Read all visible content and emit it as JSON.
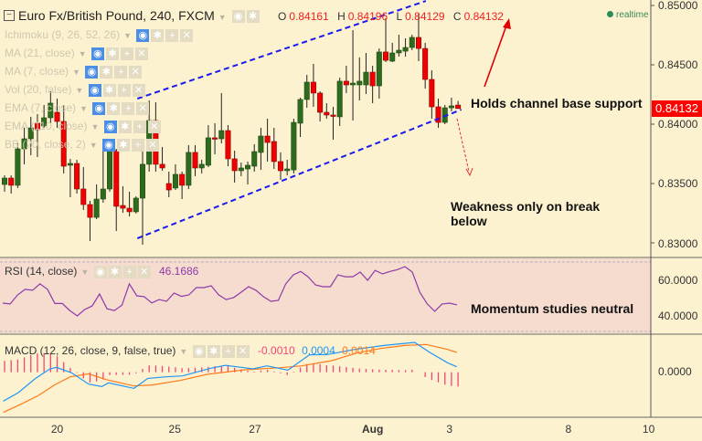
{
  "header": {
    "collapse_icon": "minus-box-icon",
    "title": "Euro Fx/British Pound, 240, FXCM",
    "ohlc": [
      {
        "key": "O",
        "value": "0.84161"
      },
      {
        "key": "H",
        "value": "0.84196"
      },
      {
        "key": "L",
        "value": "0.84129"
      },
      {
        "key": "C",
        "value": "0.84132"
      }
    ],
    "status": "realtime"
  },
  "indicators": [
    {
      "label": "Ichimoku (9, 26, 52, 26)"
    },
    {
      "label": "MA (21, close)"
    },
    {
      "label": "MA (7, close)"
    },
    {
      "label": "Vol (20, false)"
    },
    {
      "label": "EMA (7, close)"
    },
    {
      "label": "EMA (110, close)"
    },
    {
      "label": "BB (20, close, 2)"
    }
  ],
  "annotations": {
    "support": "Holds channel base support",
    "weakness_line1": "Weakness only on break",
    "weakness_line2": "below",
    "momentum": "Momentum studies neutral"
  },
  "colors": {
    "up": "#2e6b1e",
    "down": "#f00000",
    "channel": "#1a1aee",
    "rsi": "#8e3aa8",
    "macd": "#2196f3",
    "signal": "#ff7a1a",
    "hist": "#f0457a",
    "background": "#fdf2d0",
    "rsi_background": "#f5dccf"
  },
  "chart_data": [
    {
      "type": "candlestick",
      "title": "Euro Fx/British Pound, 240, FXCM",
      "ylim": [
        0.8296,
        0.8502
      ],
      "y_ticks": [
        "0.85000",
        "0.84500",
        "0.84000",
        "0.83500",
        "0.83000"
      ],
      "last_price": "0.84132",
      "x_ticks": [
        {
          "label": "20",
          "index": 8,
          "bold": false
        },
        {
          "label": "25",
          "index": 25.9,
          "bold": false
        },
        {
          "label": "27",
          "index": 38.1,
          "bold": false
        },
        {
          "label": "Aug",
          "index": 56,
          "bold": true
        },
        {
          "label": "3",
          "index": 67.7,
          "bold": false
        },
        {
          "label": "8",
          "index": 85.8,
          "bold": false
        },
        {
          "label": "10",
          "index": 98,
          "bold": false
        }
      ],
      "candles_ohlc": [
        [
          0.83492,
          0.83569,
          0.83431,
          0.83546
        ],
        [
          0.83546,
          0.83569,
          0.83415,
          0.83485
        ],
        [
          0.83485,
          0.83838,
          0.83462,
          0.83792
        ],
        [
          0.83792,
          0.83969,
          0.83662,
          0.83877
        ],
        [
          0.83877,
          0.84062,
          0.83738,
          0.83969
        ],
        [
          0.84008,
          0.84085,
          0.83723,
          0.83954
        ],
        [
          0.83985,
          0.84162,
          0.83969,
          0.84054
        ],
        [
          0.84054,
          0.84277,
          0.84008,
          0.84177
        ],
        [
          0.841,
          0.84215,
          0.83969,
          0.84023
        ],
        [
          0.84023,
          0.84162,
          0.83585,
          0.83646
        ],
        [
          0.83654,
          0.83708,
          0.83385,
          0.83669
        ],
        [
          0.83669,
          0.837,
          0.83415,
          0.83454
        ],
        [
          0.83454,
          0.83638,
          0.83277,
          0.83323
        ],
        [
          0.83323,
          0.83354,
          0.83015,
          0.83215
        ],
        [
          0.83215,
          0.83492,
          0.832,
          0.83369
        ],
        [
          0.83369,
          0.83815,
          0.83338,
          0.83454
        ],
        [
          0.83454,
          0.83823,
          0.83431,
          0.83777
        ],
        [
          0.83777,
          0.83792,
          0.831,
          0.83308
        ],
        [
          0.83315,
          0.83477,
          0.83254,
          0.83292
        ],
        [
          0.83292,
          0.83431,
          0.83223,
          0.83262
        ],
        [
          0.83262,
          0.83392,
          0.83246,
          0.83377
        ],
        [
          0.83377,
          0.83785,
          0.82985,
          0.83662
        ],
        [
          0.83662,
          0.842,
          0.836,
          0.84031
        ],
        [
          0.84031,
          0.84185,
          0.836,
          0.83662
        ],
        [
          0.83662,
          0.83808,
          0.83608,
          0.83631
        ],
        [
          0.835,
          0.836,
          0.83385,
          0.83446
        ],
        [
          0.83462,
          0.83662,
          0.83446,
          0.83577
        ],
        [
          0.83577,
          0.836,
          0.83369,
          0.83485
        ],
        [
          0.83485,
          0.83823,
          0.83454,
          0.83762
        ],
        [
          0.83762,
          0.83823,
          0.83562,
          0.83631
        ],
        [
          0.83631,
          0.837,
          0.83585,
          0.83662
        ],
        [
          0.83654,
          0.83992,
          0.83638,
          0.83885
        ],
        [
          0.83885,
          0.84008,
          0.83746,
          0.83877
        ],
        [
          0.83877,
          0.84262,
          0.83838,
          0.83946
        ],
        [
          0.83946,
          0.83992,
          0.83646,
          0.83708
        ],
        [
          0.83708,
          0.83777,
          0.83508,
          0.83608
        ],
        [
          0.83608,
          0.83677,
          0.83562,
          0.83631
        ],
        [
          0.83623,
          0.83685,
          0.83492,
          0.83654
        ],
        [
          0.83646,
          0.83831,
          0.836,
          0.83769
        ],
        [
          0.83762,
          0.83969,
          0.83615,
          0.839
        ],
        [
          0.839,
          0.84046,
          0.83685,
          0.83846
        ],
        [
          0.83854,
          0.83969,
          0.83623,
          0.83685
        ],
        [
          0.83685,
          0.83762,
          0.83531,
          0.83608
        ],
        [
          0.83608,
          0.837,
          0.83569,
          0.83623
        ],
        [
          0.83615,
          0.84046,
          0.83585,
          0.84015
        ],
        [
          0.84008,
          0.84223,
          0.83892,
          0.84208
        ],
        [
          0.84208,
          0.84415,
          0.84138,
          0.84354
        ],
        [
          0.84354,
          0.84508,
          0.84146,
          0.84262
        ],
        [
          0.84262,
          0.84277,
          0.84023,
          0.841
        ],
        [
          0.841,
          0.84177,
          0.84046,
          0.84077
        ],
        [
          0.84077,
          0.84146,
          0.83869,
          0.84069
        ],
        [
          0.84062,
          0.84392,
          0.83985,
          0.84362
        ],
        [
          0.84362,
          0.84492,
          0.84262,
          0.84331
        ],
        [
          0.84331,
          0.84792,
          0.84031,
          0.84346
        ],
        [
          0.84331,
          0.84562,
          0.842,
          0.84362
        ],
        [
          0.84331,
          0.846,
          0.84254,
          0.84438
        ],
        [
          0.84438,
          0.84492,
          0.84177,
          0.84323
        ],
        [
          0.84323,
          0.84638,
          0.84215,
          0.84608
        ],
        [
          0.84608,
          0.84892,
          0.84523,
          0.84538
        ],
        [
          0.84531,
          0.84685,
          0.84523,
          0.846
        ],
        [
          0.846,
          0.84754,
          0.84569,
          0.84623
        ],
        [
          0.84615,
          0.84723,
          0.84569,
          0.84646
        ],
        [
          0.84646,
          0.84754,
          0.84623,
          0.84731
        ],
        [
          0.84731,
          0.84931,
          0.84531,
          0.84638
        ],
        [
          0.84638,
          0.84685,
          0.843,
          0.84377
        ],
        [
          0.84377,
          0.84454,
          0.84046,
          0.84146
        ],
        [
          0.84146,
          0.84215,
          0.83969,
          0.84015
        ],
        [
          0.84015,
          0.84162,
          0.84,
          0.84138
        ],
        [
          0.84138,
          0.84223,
          0.84108,
          0.84154
        ],
        [
          0.84161,
          0.84196,
          0.84129,
          0.84132
        ]
      ],
      "channel": {
        "upper": [
          [
            20.2,
            0.84215
          ],
          [
            64.1,
            0.85038
          ]
        ],
        "lower": [
          [
            20.2,
            0.83038
          ],
          [
            69.5,
            0.84123
          ]
        ]
      }
    },
    {
      "type": "line",
      "title": "RSI (14, close)",
      "current_value": "46.1686",
      "ylim": [
        28,
        72
      ],
      "y_ticks": [
        "60.0000",
        "40.0000"
      ],
      "bands": [
        70,
        30
      ],
      "values": [
        47.2,
        46.7,
        51.8,
        54.9,
        54.4,
        58,
        55,
        47,
        47,
        43,
        40,
        43.6,
        45.6,
        52.3,
        44,
        43,
        46,
        58,
        51.3,
        50.8,
        47.3,
        49.2,
        48.2,
        52.8,
        51,
        51.8,
        55.9,
        55.9,
        56.9,
        51.8,
        49.2,
        50.3,
        53.3,
        56.4,
        54.4,
        50.8,
        48.2,
        48.7,
        58,
        63,
        65,
        62,
        57.4,
        56.4,
        56.4,
        63,
        62,
        62,
        64.6,
        60,
        65.6,
        63.6,
        65,
        66,
        67.7,
        64.6,
        53.3,
        46.7,
        42.6,
        46.7,
        47.2,
        46.2
      ]
    },
    {
      "type": "line",
      "title": "MACD (12, 26, close, 9, false, true)",
      "legend_values": [
        {
          "name": "histogram",
          "value": "-0.0010"
        },
        {
          "name": "macd",
          "value": "0.0004"
        },
        {
          "name": "signal",
          "value": "0.0014"
        }
      ],
      "y_ticks": [
        "0.0000"
      ],
      "macd": [
        [
          -0.2,
          -0.00204
        ],
        [
          2.1,
          -0.00144
        ],
        [
          4.6,
          -0.00047
        ],
        [
          6.9,
          0.00024
        ],
        [
          7.9,
          0.00034
        ],
        [
          10.2,
          -4e-05
        ],
        [
          12.8,
          -0.00084
        ],
        [
          14.8,
          -0.00101
        ],
        [
          15.8,
          -0.00075
        ],
        [
          19.7,
          -0.00114
        ],
        [
          21.8,
          -0.00043
        ],
        [
          24.6,
          -0.00032
        ],
        [
          27.1,
          -0.00026
        ],
        [
          31.3,
          0.00028
        ],
        [
          33.6,
          0.00049
        ],
        [
          37.8,
          0.00024
        ],
        [
          39.9,
          0.00045
        ],
        [
          43.1,
          0.00015
        ],
        [
          46.4,
          0.00123
        ],
        [
          49.1,
          0.00125
        ],
        [
          53.3,
          0.00161
        ],
        [
          57.7,
          0.00189
        ],
        [
          62.4,
          0.00211
        ],
        [
          64.7,
          0.0014
        ],
        [
          67.4,
          0.00067
        ],
        [
          68.8,
          0.00039
        ]
      ],
      "signal": [
        [
          -0.2,
          -0.00284
        ],
        [
          2.5,
          -0.00226
        ],
        [
          5.1,
          -0.00166
        ],
        [
          7.6,
          -0.0009
        ],
        [
          10.0,
          -0.00032
        ],
        [
          12.8,
          -0.00011
        ],
        [
          15.5,
          -0.00052
        ],
        [
          19.7,
          -0.00097
        ],
        [
          22.5,
          -0.0009
        ],
        [
          26.7,
          -0.00058
        ],
        [
          30.8,
          -0.00015
        ],
        [
          36.4,
          0.00017
        ],
        [
          42.0,
          0.00032
        ],
        [
          45.2,
          0.00045
        ],
        [
          49.8,
          0.00082
        ],
        [
          53.5,
          0.00135
        ],
        [
          57.2,
          0.00168
        ],
        [
          60.9,
          0.00189
        ],
        [
          64.2,
          0.00196
        ],
        [
          67.4,
          0.00161
        ],
        [
          68.8,
          0.0014
        ]
      ]
    }
  ]
}
